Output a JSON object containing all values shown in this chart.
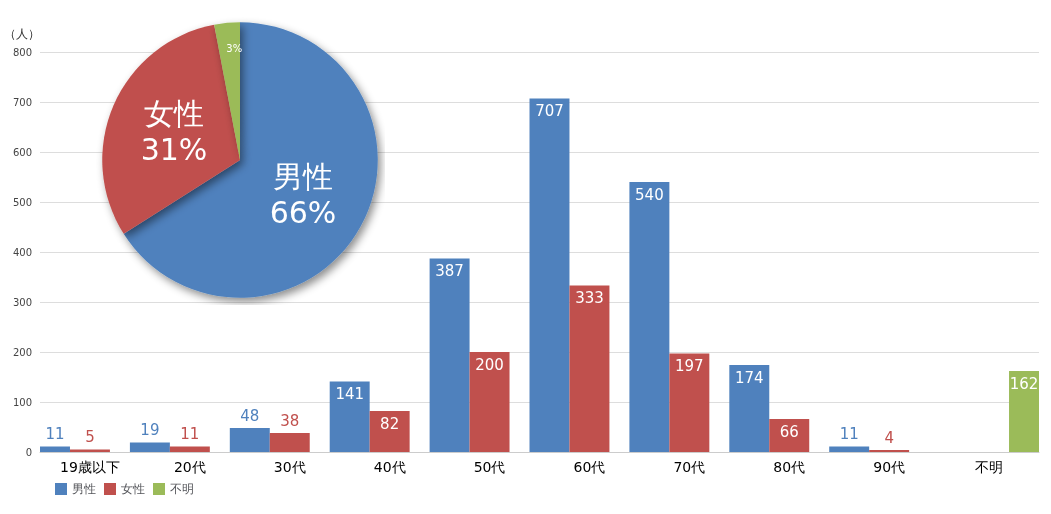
{
  "chart_data": [
    {
      "type": "bar",
      "ylabel": "（人）",
      "categories": [
        "19歳以下",
        "20代",
        "30代",
        "40代",
        "50代",
        "60代",
        "70代",
        "80代",
        "90代",
        "不明"
      ],
      "series": [
        {
          "name": "男性",
          "color": "#4f81bd",
          "values": [
            11,
            19,
            48,
            141,
            387,
            707,
            540,
            174,
            11,
            null
          ]
        },
        {
          "name": "女性",
          "color": "#c0504d",
          "values": [
            5,
            11,
            38,
            82,
            200,
            333,
            197,
            66,
            4,
            null
          ]
        },
        {
          "name": "不明",
          "color": "#9bbb59",
          "values": [
            null,
            null,
            null,
            null,
            null,
            null,
            null,
            null,
            null,
            162
          ]
        }
      ],
      "ylim": [
        0,
        800
      ],
      "yticks": [
        0,
        100,
        200,
        300,
        400,
        500,
        600,
        700,
        800
      ],
      "grid": "y",
      "legend": "bottom left",
      "data_labels": true
    },
    {
      "type": "pie",
      "categories": [
        "男性",
        "女性",
        null
      ],
      "values": [
        66,
        31,
        3
      ],
      "value_labels": [
        "66%",
        "31%",
        "3%"
      ],
      "colors": [
        "#4f81bd",
        "#c0504d",
        "#9bbb59"
      ],
      "legend": false
    }
  ]
}
